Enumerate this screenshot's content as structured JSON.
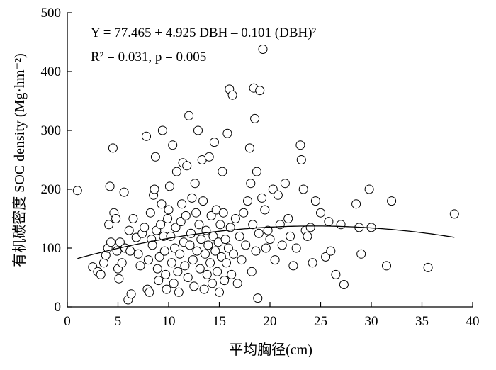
{
  "chart_data": {
    "type": "scatter",
    "xlabel": "平均胸径(cm)",
    "ylabel": "有机碳密度 SOC density (Mg·hm⁻²)",
    "xlim": [
      0,
      40
    ],
    "ylim": [
      0,
      500
    ],
    "x_ticks": [
      0,
      5,
      10,
      15,
      20,
      25,
      30,
      35,
      40
    ],
    "y_ticks": [
      0,
      100,
      200,
      300,
      400,
      500
    ],
    "grid": false,
    "annotations": [
      "Y = 77.465 + 4.925 DBH – 0.101 (DBH)²",
      "R² = 0.031, p = 0.005"
    ],
    "fit": {
      "intercept": 77.465,
      "b1": 4.925,
      "b2": -0.101,
      "x_range": [
        1,
        38.2
      ]
    },
    "points": [
      [
        1,
        198
      ],
      [
        2.5,
        68
      ],
      [
        3,
        60
      ],
      [
        3.3,
        55
      ],
      [
        3.6,
        75
      ],
      [
        3.8,
        88
      ],
      [
        4,
        100
      ],
      [
        4.1,
        140
      ],
      [
        4.2,
        205
      ],
      [
        4.3,
        110
      ],
      [
        4.5,
        270
      ],
      [
        4.6,
        160
      ],
      [
        4.8,
        150
      ],
      [
        4.9,
        95
      ],
      [
        5,
        65
      ],
      [
        5.1,
        48
      ],
      [
        5.2,
        110
      ],
      [
        5.4,
        75
      ],
      [
        5.6,
        195
      ],
      [
        5.7,
        100
      ],
      [
        6,
        12
      ],
      [
        6.1,
        130
      ],
      [
        6.2,
        95
      ],
      [
        6.3,
        22
      ],
      [
        6.5,
        150
      ],
      [
        6.8,
        118
      ],
      [
        7,
        90
      ],
      [
        7.2,
        70
      ],
      [
        7.4,
        125
      ],
      [
        7.6,
        135
      ],
      [
        7.8,
        290
      ],
      [
        7.9,
        30
      ],
      [
        8,
        80
      ],
      [
        8.1,
        25
      ],
      [
        8.2,
        160
      ],
      [
        8.3,
        115
      ],
      [
        8.4,
        105
      ],
      [
        8.5,
        190
      ],
      [
        8.6,
        200
      ],
      [
        8.7,
        255
      ],
      [
        8.8,
        130
      ],
      [
        8.9,
        65
      ],
      [
        9,
        45
      ],
      [
        9.1,
        85
      ],
      [
        9.2,
        140
      ],
      [
        9.3,
        175
      ],
      [
        9.4,
        300
      ],
      [
        9.5,
        120
      ],
      [
        9.6,
        95
      ],
      [
        9.7,
        55
      ],
      [
        9.8,
        30
      ],
      [
        9.9,
        150
      ],
      [
        10,
        165
      ],
      [
        10.1,
        205
      ],
      [
        10.2,
        120
      ],
      [
        10.3,
        75
      ],
      [
        10.4,
        275
      ],
      [
        10.5,
        40
      ],
      [
        10.6,
        100
      ],
      [
        10.7,
        135
      ],
      [
        10.8,
        230
      ],
      [
        10.9,
        60
      ],
      [
        11,
        25
      ],
      [
        11.1,
        90
      ],
      [
        11.2,
        145
      ],
      [
        11.3,
        175
      ],
      [
        11.4,
        245
      ],
      [
        11.5,
        110
      ],
      [
        11.6,
        70
      ],
      [
        11.7,
        155
      ],
      [
        11.8,
        240
      ],
      [
        11.9,
        50
      ],
      [
        12,
        325
      ],
      [
        12.1,
        105
      ],
      [
        12.2,
        125
      ],
      [
        12.3,
        185
      ],
      [
        12.4,
        80
      ],
      [
        12.5,
        35
      ],
      [
        12.6,
        210
      ],
      [
        12.7,
        160
      ],
      [
        12.8,
        95
      ],
      [
        12.9,
        300
      ],
      [
        13,
        140
      ],
      [
        13.1,
        65
      ],
      [
        13.2,
        115
      ],
      [
        13.3,
        250
      ],
      [
        13.4,
        180
      ],
      [
        13.5,
        30
      ],
      [
        13.6,
        90
      ],
      [
        13.7,
        130
      ],
      [
        13.8,
        55
      ],
      [
        13.9,
        105
      ],
      [
        14,
        255
      ],
      [
        14.1,
        75
      ],
      [
        14.2,
        155
      ],
      [
        14.3,
        40
      ],
      [
        14.4,
        120
      ],
      [
        14.5,
        280
      ],
      [
        14.6,
        95
      ],
      [
        14.7,
        165
      ],
      [
        14.8,
        60
      ],
      [
        14.9,
        110
      ],
      [
        15,
        25
      ],
      [
        15.1,
        140
      ],
      [
        15.2,
        85
      ],
      [
        15.3,
        230
      ],
      [
        15.4,
        160
      ],
      [
        15.5,
        45
      ],
      [
        15.6,
        115
      ],
      [
        15.7,
        75
      ],
      [
        15.8,
        295
      ],
      [
        15.9,
        100
      ],
      [
        16,
        370
      ],
      [
        16.1,
        135
      ],
      [
        16.2,
        55
      ],
      [
        16.3,
        360
      ],
      [
        16.4,
        90
      ],
      [
        16.6,
        150
      ],
      [
        16.8,
        40
      ],
      [
        17,
        120
      ],
      [
        17.2,
        80
      ],
      [
        17.4,
        160
      ],
      [
        17.6,
        105
      ],
      [
        17.8,
        180
      ],
      [
        18,
        270
      ],
      [
        18.1,
        210
      ],
      [
        18.2,
        60
      ],
      [
        18.3,
        140
      ],
      [
        18.4,
        372
      ],
      [
        18.5,
        320
      ],
      [
        18.6,
        95
      ],
      [
        18.7,
        230
      ],
      [
        18.8,
        15
      ],
      [
        18.9,
        125
      ],
      [
        19,
        368
      ],
      [
        19.2,
        185
      ],
      [
        19.3,
        438
      ],
      [
        19.5,
        165
      ],
      [
        19.6,
        100
      ],
      [
        19.8,
        130
      ],
      [
        20,
        115
      ],
      [
        20.3,
        200
      ],
      [
        20.5,
        80
      ],
      [
        20.8,
        190
      ],
      [
        21,
        140
      ],
      [
        21.2,
        105
      ],
      [
        21.5,
        210
      ],
      [
        21.8,
        150
      ],
      [
        22,
        120
      ],
      [
        22.3,
        70
      ],
      [
        22.6,
        100
      ],
      [
        23,
        275
      ],
      [
        23.1,
        250
      ],
      [
        23.3,
        200
      ],
      [
        23.5,
        130
      ],
      [
        23.7,
        120
      ],
      [
        24,
        135
      ],
      [
        24.2,
        75
      ],
      [
        24.5,
        180
      ],
      [
        25,
        160
      ],
      [
        25.5,
        85
      ],
      [
        25.8,
        145
      ],
      [
        26,
        95
      ],
      [
        26.5,
        55
      ],
      [
        27,
        140
      ],
      [
        27.3,
        38
      ],
      [
        28.5,
        175
      ],
      [
        28.8,
        135
      ],
      [
        29,
        90
      ],
      [
        29.8,
        200
      ],
      [
        30,
        135
      ],
      [
        31.5,
        70
      ],
      [
        32,
        180
      ],
      [
        35.6,
        67
      ],
      [
        38.2,
        158
      ]
    ]
  }
}
